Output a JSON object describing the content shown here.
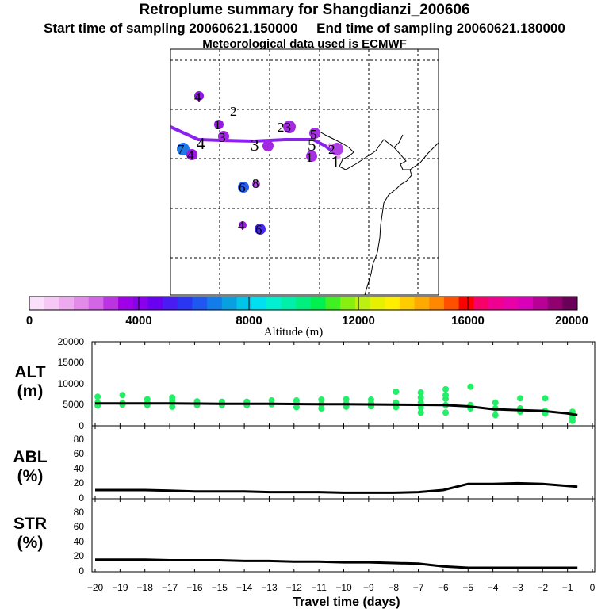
{
  "header": {
    "title": "Retroplume summary for Shangdianzi_200606",
    "start_label": "Start time of sampling 20060621.150000",
    "end_label": "End time of sampling 20060621.180000",
    "met_label": "Meteorological data used is ECMWF"
  },
  "colorbar": {
    "ticks": [
      "0",
      "4000",
      "8000",
      "12000",
      "16000",
      "20000"
    ],
    "label": "Altitude (m)",
    "colors": [
      "#fbe0fb",
      "#f5c8f5",
      "#eeaaee",
      "#e48ae8",
      "#d466e6",
      "#bb33e3",
      "#a000e8",
      "#8a00ee",
      "#6a00f2",
      "#4a1cf4",
      "#2a36f4",
      "#1e58f0",
      "#127ce8",
      "#08a0e0",
      "#00c4e8",
      "#00e0f0",
      "#00f0d0",
      "#00f0aa",
      "#00f080",
      "#00f050",
      "#40f020",
      "#88f010",
      "#bbf010",
      "#e6f000",
      "#ffee00",
      "#ffcc00",
      "#ffaa00",
      "#ff8800",
      "#ff5000",
      "#ff0000",
      "#f8006a",
      "#f00090",
      "#e800a8",
      "#d800b8",
      "#b80098",
      "#900070",
      "#6a0058"
    ]
  },
  "map": {
    "labels": [
      "4",
      "2",
      "1",
      "4",
      "3",
      "3",
      "23",
      "5",
      "5",
      "1",
      "2",
      "1",
      "7",
      "4",
      "6",
      "8",
      "4",
      "6"
    ]
  },
  "chart_data": [
    {
      "type": "line",
      "panel": "altitude",
      "ylabel": [
        "ALT",
        "(m)"
      ],
      "yticks": [
        "20000",
        "15000",
        "10000",
        "5000",
        "0"
      ],
      "ylim": [
        0,
        20000
      ],
      "xlim": [
        -20,
        0
      ],
      "x": [
        -20,
        -19,
        -18,
        -17,
        -16,
        -15,
        -14,
        -13,
        -12,
        -11,
        -10,
        -9,
        -8,
        -7,
        -6,
        -5,
        -4,
        -3,
        -2,
        -1,
        -0.6
      ],
      "series": [
        {
          "name": "mean altitude",
          "values": [
            5200,
            5200,
            5200,
            5200,
            5150,
            5100,
            5100,
            5100,
            5050,
            5000,
            5000,
            4950,
            4900,
            4850,
            4800,
            4500,
            3800,
            3600,
            3400,
            2800,
            2400
          ]
        }
      ],
      "scatter": {
        "name": "particle altitudes",
        "color": "#22ee66",
        "points": [
          [
            -19.9,
            4700
          ],
          [
            -19.9,
            5400
          ],
          [
            -19.9,
            6800
          ],
          [
            -18.9,
            4900
          ],
          [
            -18.9,
            5300
          ],
          [
            -18.9,
            7200
          ],
          [
            -17.9,
            4800
          ],
          [
            -17.9,
            5400
          ],
          [
            -17.9,
            6200
          ],
          [
            -16.9,
            4400
          ],
          [
            -16.9,
            5300
          ],
          [
            -16.9,
            6000
          ],
          [
            -16.9,
            6600
          ],
          [
            -15.9,
            4800
          ],
          [
            -15.9,
            5700
          ],
          [
            -14.9,
            4800
          ],
          [
            -14.9,
            5600
          ],
          [
            -13.9,
            4800
          ],
          [
            -13.9,
            5600
          ],
          [
            -12.9,
            5000
          ],
          [
            -12.9,
            5900
          ],
          [
            -11.9,
            4300
          ],
          [
            -11.9,
            5300
          ],
          [
            -11.9,
            5900
          ],
          [
            -10.9,
            4000
          ],
          [
            -10.9,
            5000
          ],
          [
            -10.9,
            6100
          ],
          [
            -9.9,
            4400
          ],
          [
            -9.9,
            5200
          ],
          [
            -9.9,
            6200
          ],
          [
            -8.9,
            4500
          ],
          [
            -8.9,
            5300
          ],
          [
            -8.9,
            6100
          ],
          [
            -7.9,
            4300
          ],
          [
            -7.9,
            5400
          ],
          [
            -7.9,
            8000
          ],
          [
            -6.9,
            3000
          ],
          [
            -6.9,
            4200
          ],
          [
            -6.9,
            5400
          ],
          [
            -6.9,
            6600
          ],
          [
            -6.9,
            7800
          ],
          [
            -5.9,
            3000
          ],
          [
            -5.9,
            4800
          ],
          [
            -5.9,
            6300
          ],
          [
            -5.9,
            7200
          ],
          [
            -5.9,
            8600
          ],
          [
            -4.9,
            4000
          ],
          [
            -4.9,
            4800
          ],
          [
            -4.9,
            9200
          ],
          [
            -3.9,
            2400
          ],
          [
            -3.9,
            4000
          ],
          [
            -3.9,
            5400
          ],
          [
            -2.9,
            3200
          ],
          [
            -2.9,
            4000
          ],
          [
            -2.9,
            6400
          ],
          [
            -1.9,
            2800
          ],
          [
            -1.9,
            3400
          ],
          [
            -1.9,
            6400
          ],
          [
            -0.8,
            1000
          ],
          [
            -0.8,
            1800
          ],
          [
            -0.8,
            2600
          ],
          [
            -0.8,
            3200
          ]
        ]
      }
    },
    {
      "type": "line",
      "panel": "abl",
      "ylabel": [
        "ABL",
        "(%)"
      ],
      "yticks": [
        "80",
        "60",
        "40",
        "20",
        "0"
      ],
      "ylim": [
        0,
        100
      ],
      "xlim": [
        -20,
        0
      ],
      "x": [
        -20,
        -19,
        -18,
        -17,
        -16,
        -15,
        -14,
        -13,
        -12,
        -11,
        -10,
        -9,
        -8,
        -7,
        -6,
        -5,
        -4,
        -3,
        -2,
        -1,
        -0.6
      ],
      "series": [
        {
          "name": "fraction in ABL",
          "values": [
            7,
            7,
            7,
            6,
            5,
            5,
            5,
            4,
            4,
            4,
            3,
            3,
            3,
            4,
            7,
            16,
            16,
            17,
            16,
            13,
            12
          ]
        }
      ]
    },
    {
      "type": "line",
      "panel": "str",
      "ylabel": [
        "STR",
        "(%)"
      ],
      "yticks": [
        "80",
        "60",
        "40",
        "20",
        "0"
      ],
      "ylim": [
        0,
        100
      ],
      "xlim": [
        -20,
        0
      ],
      "xlabel": "Travel time (days)",
      "xticks": [
        "−20",
        "−19",
        "−18",
        "−17",
        "−16",
        "−15",
        "−14",
        "−13",
        "−12",
        "−11",
        "−10",
        "−9",
        "−8",
        "−7",
        "−6",
        "−5",
        "−4",
        "−3",
        "−2",
        "−1",
        "0"
      ],
      "x": [
        -20,
        -19,
        -18,
        -17,
        -16,
        -15,
        -14,
        -13,
        -12,
        -11,
        -10,
        -9,
        -8,
        -7,
        -6,
        -5,
        -4,
        -3,
        -2,
        -1,
        -0.6
      ],
      "series": [
        {
          "name": "fraction in stratosphere",
          "values": [
            12,
            12,
            12,
            11,
            11,
            11,
            10,
            10,
            9,
            9,
            8,
            8,
            7,
            6,
            2,
            0,
            0,
            0,
            0,
            0,
            0
          ]
        }
      ]
    }
  ]
}
